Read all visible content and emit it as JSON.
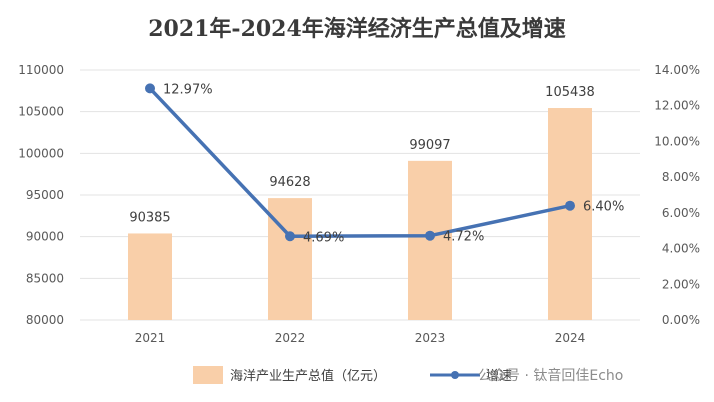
{
  "chart_data": {
    "type": "bar",
    "title": "2021年-2024年海洋经济生产总值及增速",
    "categories": [
      "2021",
      "2022",
      "2023",
      "2024"
    ],
    "series": [
      {
        "name": "海洋产业生产总值（亿元）",
        "kind": "bar",
        "axis": "left",
        "values": [
          90385,
          94628,
          99097,
          105438
        ],
        "labels": [
          "90385",
          "94628",
          "99097",
          "105438"
        ]
      },
      {
        "name": "增速",
        "kind": "line",
        "axis": "right",
        "values": [
          12.97,
          4.69,
          4.72,
          6.4
        ],
        "labels": [
          "12.97%",
          "4.69%",
          "4.72%",
          "6.40%"
        ]
      }
    ],
    "y_left": {
      "min": 80000,
      "max": 110000,
      "ticks": [
        "80000",
        "85000",
        "90000",
        "95000",
        "100000",
        "105000",
        "110000"
      ]
    },
    "y_right": {
      "min": 0,
      "max": 14,
      "ticks": [
        "0.00%",
        "2.00%",
        "4.00%",
        "6.00%",
        "8.00%",
        "10.00%",
        "12.00%",
        "14.00%"
      ]
    },
    "grid": true,
    "legend_position": "bottom",
    "colors": {
      "bar": "#f9cfa9",
      "line": "#4672b3",
      "grid": "#e3e3e3"
    }
  },
  "watermark": "公众号 · 钛音回佳Echo"
}
